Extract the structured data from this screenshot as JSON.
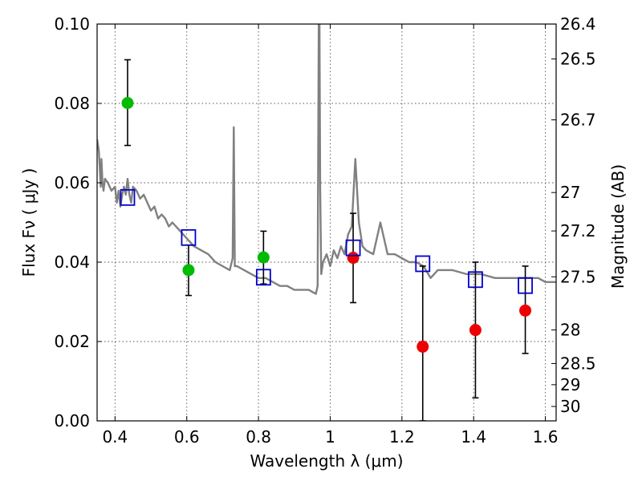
{
  "chart_data": {
    "type": "scatter",
    "xlabel": "Wavelength  λ (μm)",
    "ylabel": "Flux  Fν  ( μJy )",
    "y2label": "Magnitude (AB)",
    "xlim": [
      0.35,
      1.63
    ],
    "ylim": [
      0.0,
      0.1
    ],
    "x_ticks": [
      "0.4",
      "0.6",
      "0.8",
      "1",
      "1.2",
      "1.4",
      "1.6"
    ],
    "y_ticks": [
      "0.00",
      "0.02",
      "0.04",
      "0.06",
      "0.08",
      "0.10"
    ],
    "y2_ticks": [
      "26.4",
      "26.5",
      "26.7",
      "27",
      "27.2",
      "27.5",
      "28",
      "28.5",
      "29",
      "30"
    ],
    "grid": true,
    "colors": {
      "template": "#808080",
      "green_points": "#00bb00",
      "red_points": "#ee0000",
      "model_squares": "#0000cc",
      "errorbars": "#000000"
    },
    "series": [
      {
        "marker": "circle",
        "color": "#00bb00",
        "x": [
          0.435,
          0.605,
          0.814
        ],
        "y": [
          0.0801,
          0.038,
          0.0412
        ],
        "yerr_low": [
          0.0694,
          0.0316,
          0.0345
        ],
        "yerr_high": [
          0.091,
          0.0443,
          0.0478
        ]
      },
      {
        "marker": "circle",
        "color": "#ee0000",
        "x": [
          1.064,
          1.258,
          1.405,
          1.544
        ],
        "y": [
          0.0411,
          0.0187,
          0.0229,
          0.0278
        ],
        "yerr_low": [
          0.0298,
          0.0,
          0.0058,
          0.017
        ],
        "yerr_high": [
          0.0523,
          0.039,
          0.04,
          0.039
        ]
      },
      {
        "marker": "open-square",
        "color": "#0000cc",
        "x": [
          0.435,
          0.605,
          0.814,
          1.064,
          1.258,
          1.405,
          1.544
        ],
        "y": [
          0.0563,
          0.0462,
          0.0362,
          0.0436,
          0.0396,
          0.0356,
          0.0341
        ]
      },
      {
        "marker": "line",
        "color": "#808080",
        "x": [
          0.35,
          0.355,
          0.36,
          0.362,
          0.365,
          0.368,
          0.372,
          0.38,
          0.39,
          0.4,
          0.405,
          0.41,
          0.415,
          0.42,
          0.425,
          0.43,
          0.435,
          0.44,
          0.445,
          0.45,
          0.46,
          0.47,
          0.48,
          0.49,
          0.5,
          0.51,
          0.52,
          0.53,
          0.54,
          0.55,
          0.56,
          0.57,
          0.58,
          0.59,
          0.6,
          0.62,
          0.64,
          0.66,
          0.68,
          0.7,
          0.72,
          0.728,
          0.731,
          0.734,
          0.74,
          0.76,
          0.78,
          0.8,
          0.82,
          0.84,
          0.86,
          0.88,
          0.9,
          0.92,
          0.94,
          0.96,
          0.965,
          0.968,
          0.97,
          0.972,
          0.975,
          0.98,
          0.99,
          1.0,
          1.01,
          1.02,
          1.03,
          1.04,
          1.05,
          1.06,
          1.07,
          1.08,
          1.09,
          1.1,
          1.12,
          1.14,
          1.16,
          1.18,
          1.2,
          1.22,
          1.24,
          1.26,
          1.28,
          1.3,
          1.34,
          1.38,
          1.42,
          1.46,
          1.5,
          1.54,
          1.58,
          1.6,
          1.63
        ],
        "y": [
          0.071,
          0.068,
          0.059,
          0.066,
          0.06,
          0.058,
          0.061,
          0.06,
          0.058,
          0.059,
          0.055,
          0.058,
          0.054,
          0.057,
          0.059,
          0.057,
          0.061,
          0.057,
          0.055,
          0.059,
          0.058,
          0.056,
          0.057,
          0.055,
          0.053,
          0.054,
          0.051,
          0.052,
          0.051,
          0.049,
          0.05,
          0.049,
          0.048,
          0.047,
          0.046,
          0.044,
          0.043,
          0.042,
          0.04,
          0.039,
          0.038,
          0.041,
          0.074,
          0.039,
          0.039,
          0.038,
          0.037,
          0.036,
          0.036,
          0.035,
          0.034,
          0.034,
          0.033,
          0.033,
          0.033,
          0.032,
          0.034,
          0.1,
          0.1,
          0.058,
          0.037,
          0.04,
          0.042,
          0.039,
          0.043,
          0.041,
          0.044,
          0.042,
          0.047,
          0.049,
          0.066,
          0.05,
          0.044,
          0.043,
          0.042,
          0.05,
          0.042,
          0.042,
          0.041,
          0.04,
          0.04,
          0.039,
          0.036,
          0.038,
          0.038,
          0.037,
          0.037,
          0.036,
          0.036,
          0.036,
          0.036,
          0.035,
          0.035
        ]
      }
    ]
  }
}
